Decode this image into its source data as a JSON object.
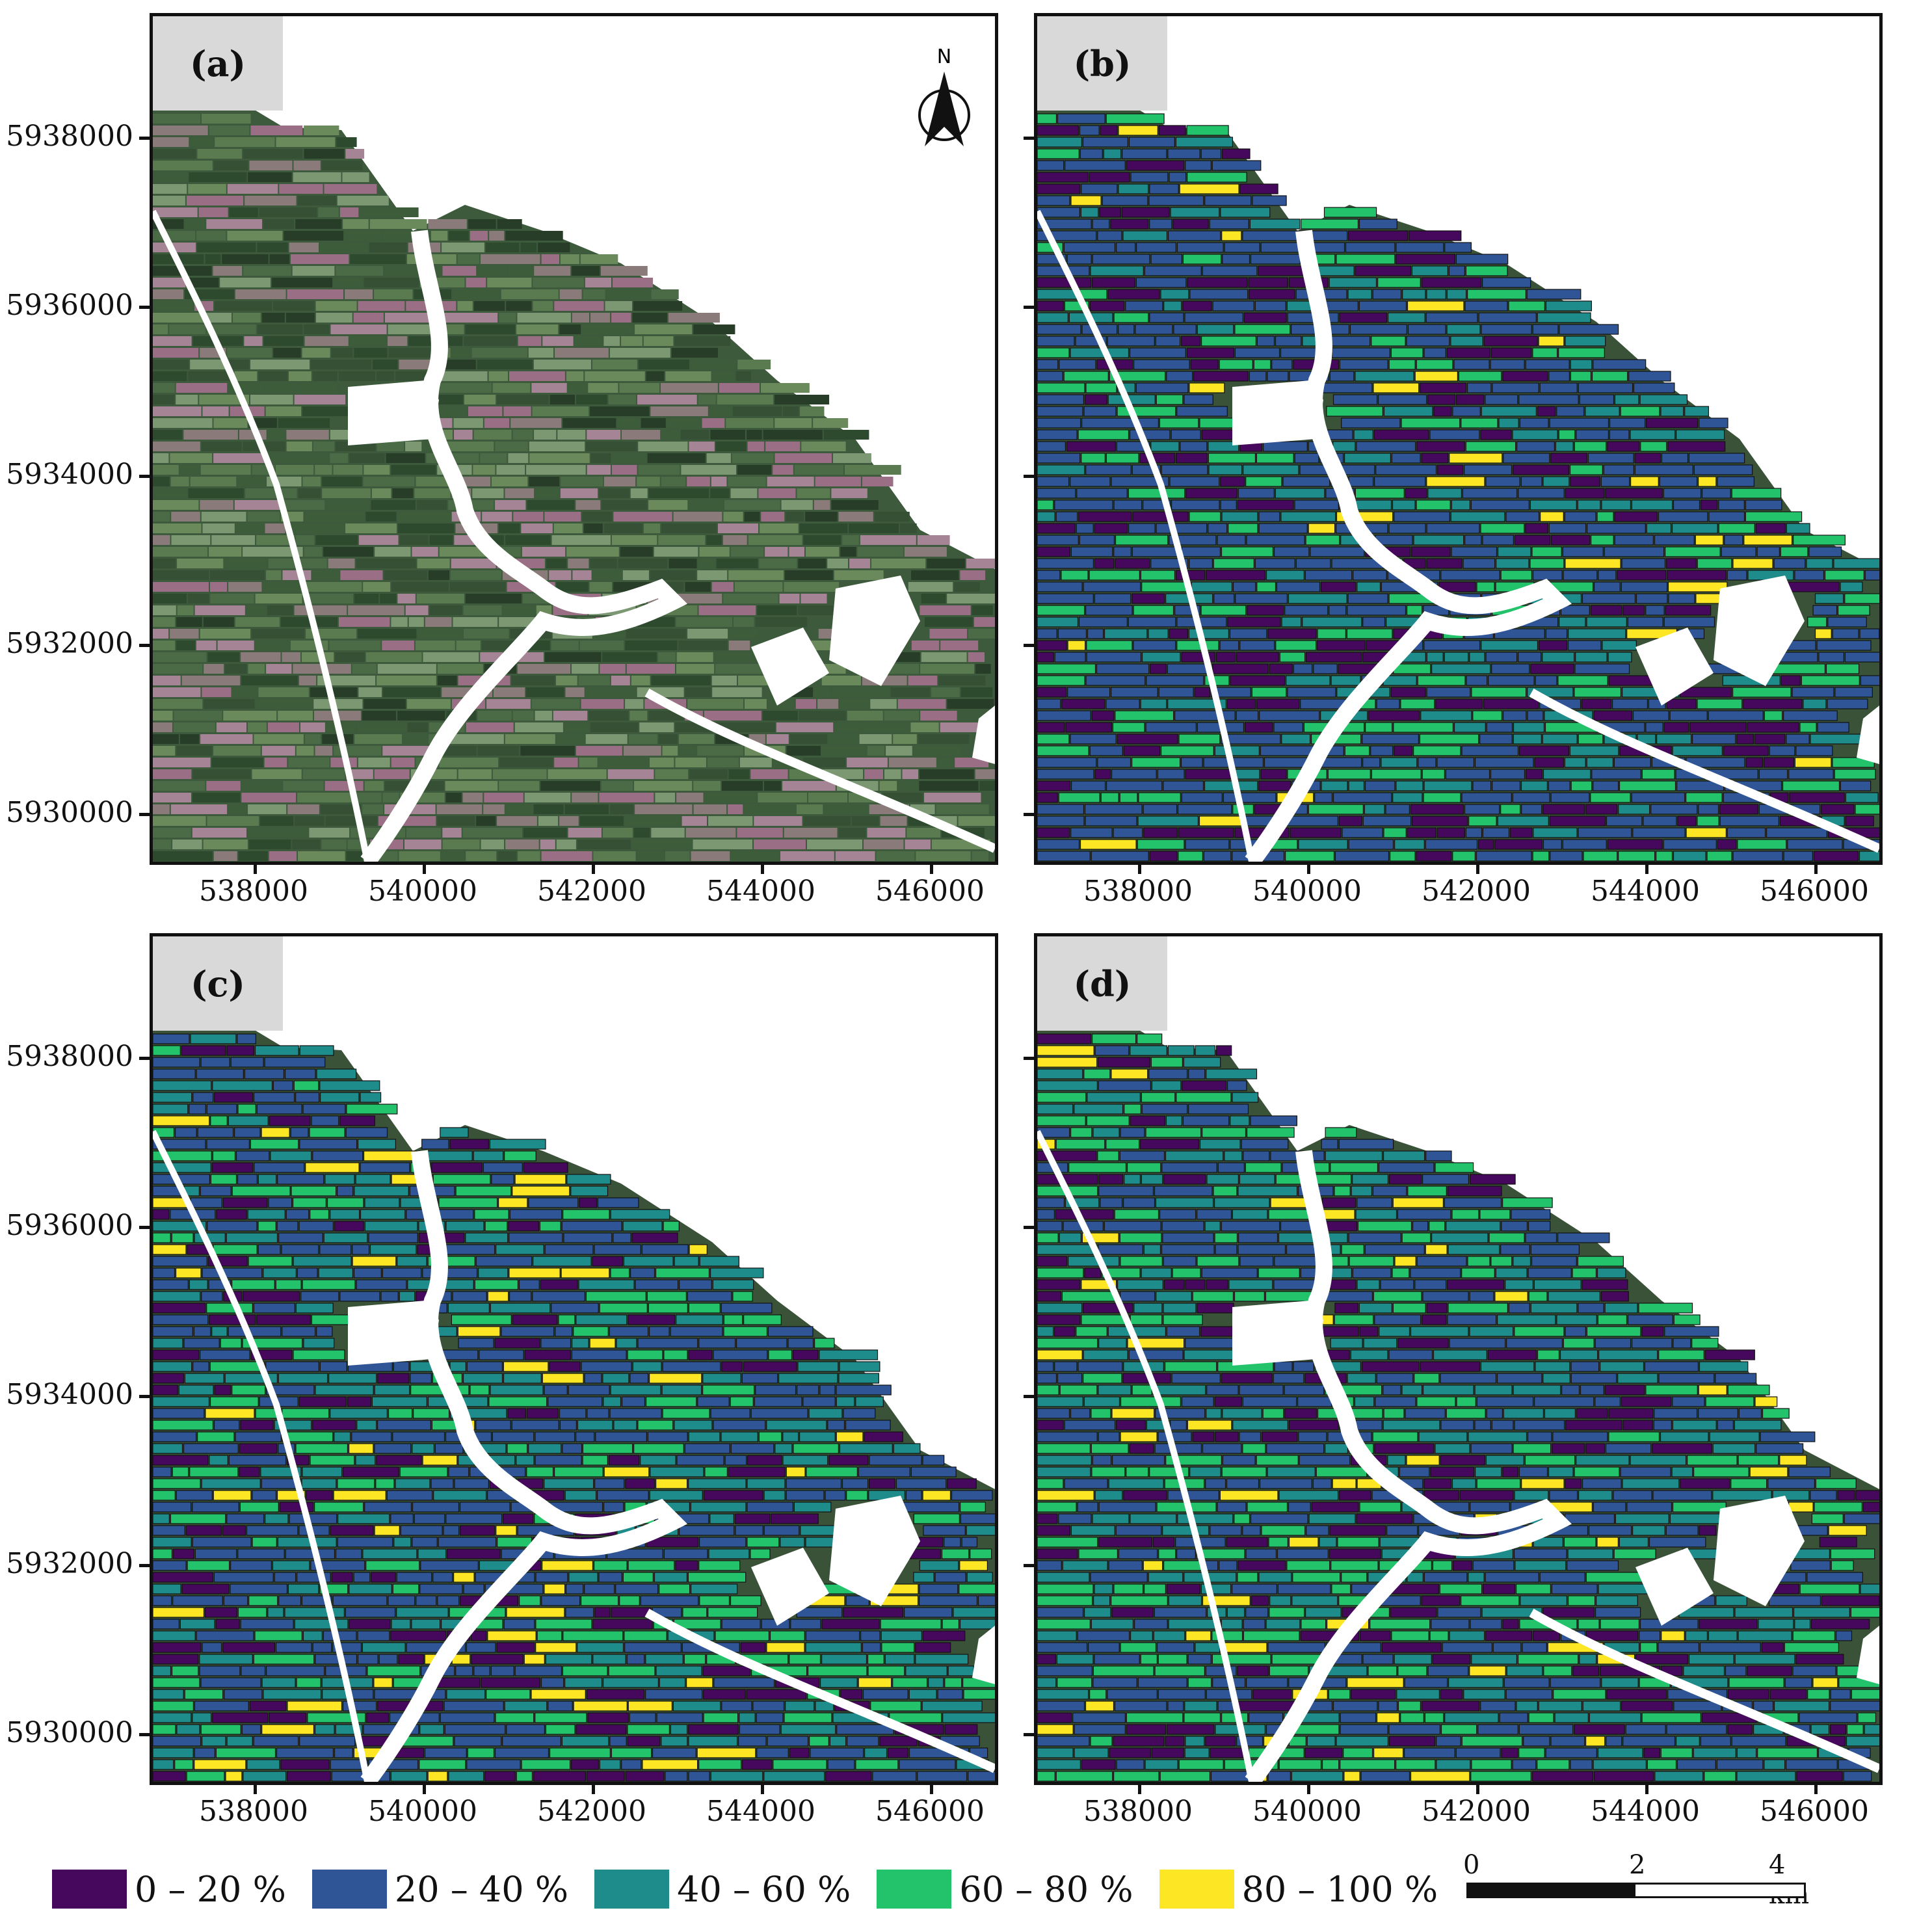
{
  "panels": [
    {
      "id": "a",
      "label": "(a)",
      "mode": "satellite"
    },
    {
      "id": "b",
      "label": "(b)",
      "mode": "classified"
    },
    {
      "id": "c",
      "label": "(c)",
      "mode": "classified"
    },
    {
      "id": "d",
      "label": "(d)",
      "mode": "classified"
    }
  ],
  "y_ticks": [
    "5938000",
    "5936000",
    "5934000",
    "5932000",
    "5930000"
  ],
  "x_ticks": [
    "538000",
    "540000",
    "542000",
    "544000",
    "546000"
  ],
  "north_arrow_label": "N",
  "legend": [
    {
      "label": "0 – 20 %",
      "color": "#46085c"
    },
    {
      "label": "20 – 40 %",
      "color": "#2f5597"
    },
    {
      "label": "40 – 60 %",
      "color": "#1f8c8c"
    },
    {
      "label": "60 – 80 %",
      "color": "#22c36a"
    },
    {
      "label": "80 – 100 %",
      "color": "#fde725"
    }
  ],
  "scale_bar": {
    "labels": [
      "0",
      "2",
      "4 km"
    ]
  }
}
